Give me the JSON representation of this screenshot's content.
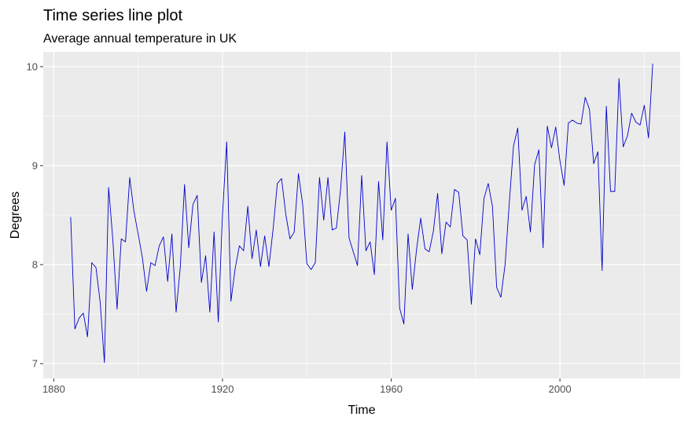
{
  "chart_data": {
    "type": "line",
    "title": "Time series line plot",
    "subtitle": "Average annual temperature in UK",
    "xlabel": "Time",
    "ylabel": "Degrees",
    "xlim": [
      1877.5,
      2028.5
    ],
    "ylim": [
      6.85,
      10.15
    ],
    "x_ticks": [
      1880,
      1920,
      1960,
      2000
    ],
    "x_tick_labels": [
      "1880",
      "1920",
      "1960",
      "2000"
    ],
    "y_ticks": [
      7,
      8,
      9,
      10
    ],
    "y_tick_labels": [
      "7",
      "8",
      "9",
      "10"
    ],
    "grid": true,
    "legend": "none",
    "panel_color": "#ebebeb",
    "grid_color": "#ffffff",
    "line_color": "#0000cd",
    "series": [
      {
        "x": [
          1884,
          1885,
          1886,
          1887,
          1888,
          1889,
          1890,
          1891,
          1892,
          1893,
          1894,
          1895,
          1896,
          1897,
          1898,
          1899,
          1900,
          1901,
          1902,
          1903,
          1904,
          1905,
          1906,
          1907,
          1908,
          1909,
          1910,
          1911,
          1912,
          1913,
          1914,
          1915,
          1916,
          1917,
          1918,
          1919,
          1920,
          1921,
          1922,
          1923,
          1924,
          1925,
          1926,
          1927,
          1928,
          1929,
          1930,
          1931,
          1932,
          1933,
          1934,
          1935,
          1936,
          1937,
          1938,
          1939,
          1940,
          1941,
          1942,
          1943,
          1944,
          1945,
          1946,
          1947,
          1948,
          1949,
          1950,
          1951,
          1952,
          1953,
          1954,
          1955,
          1956,
          1957,
          1958,
          1959,
          1960,
          1961,
          1962,
          1963,
          1964,
          1965,
          1966,
          1967,
          1968,
          1969,
          1970,
          1971,
          1972,
          1973,
          1974,
          1975,
          1976,
          1977,
          1978,
          1979,
          1980,
          1981,
          1982,
          1983,
          1984,
          1985,
          1986,
          1987,
          1988,
          1989,
          1990,
          1991,
          1992,
          1993,
          1994,
          1995,
          1996,
          1997,
          1998,
          1999,
          2000,
          2001,
          2002,
          2003,
          2004,
          2005,
          2006,
          2007,
          2008,
          2009,
          2010,
          2011,
          2012,
          2013,
          2014,
          2015,
          2016,
          2017,
          2018,
          2019,
          2020,
          2021,
          2022
        ],
        "values": [
          8.48,
          7.35,
          7.46,
          7.51,
          7.27,
          8.02,
          7.97,
          7.62,
          7.01,
          8.78,
          8.25,
          7.55,
          8.26,
          8.23,
          8.88,
          8.54,
          8.31,
          8.07,
          7.73,
          8.02,
          7.99,
          8.19,
          8.28,
          7.83,
          8.31,
          7.52,
          7.98,
          8.81,
          8.17,
          8.61,
          8.7,
          7.82,
          8.09,
          7.52,
          8.33,
          7.42,
          8.51,
          9.24,
          7.63,
          7.96,
          8.19,
          8.14,
          8.59,
          8.06,
          8.35,
          7.98,
          8.29,
          7.98,
          8.36,
          8.82,
          8.87,
          8.51,
          8.26,
          8.33,
          8.92,
          8.61,
          8.01,
          7.95,
          8.02,
          8.88,
          8.45,
          8.88,
          8.35,
          8.37,
          8.76,
          9.34,
          8.27,
          8.13,
          7.99,
          8.9,
          8.14,
          8.23,
          7.9,
          8.84,
          8.25,
          9.24,
          8.55,
          8.67,
          7.56,
          7.4,
          8.31,
          7.75,
          8.15,
          8.47,
          8.16,
          8.13,
          8.34,
          8.72,
          8.11,
          8.43,
          8.38,
          8.76,
          8.73,
          8.29,
          8.25,
          7.6,
          8.26,
          8.1,
          8.67,
          8.82,
          8.59,
          7.77,
          7.67,
          8.0,
          8.63,
          9.2,
          9.38,
          8.55,
          8.69,
          8.33,
          9.01,
          9.16,
          8.17,
          9.4,
          9.18,
          9.39,
          9.05,
          8.8,
          9.43,
          9.46,
          9.43,
          9.42,
          9.69,
          9.57,
          9.02,
          9.14,
          7.94,
          9.6,
          8.74,
          8.74,
          9.88,
          9.19,
          9.3,
          9.53,
          9.44,
          9.41,
          9.61,
          9.28,
          10.03
        ]
      }
    ]
  }
}
